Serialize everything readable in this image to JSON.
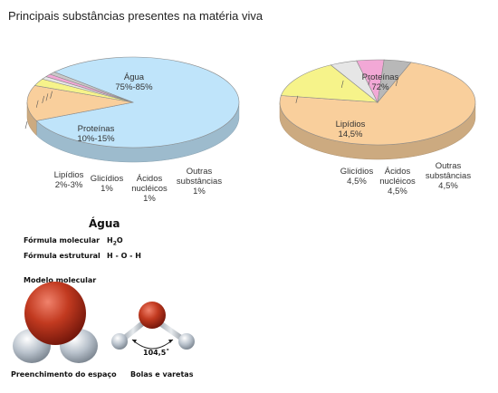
{
  "title": "Principais substâncias presentes na matéria viva",
  "chart_data": [
    {
      "type": "pie",
      "slices": [
        {
          "name": "Água",
          "value_label": "75%-85%",
          "value": 80,
          "color": "#bfe4fa"
        },
        {
          "name": "Proteínas",
          "value_label": "10%-15%",
          "value": 12.5,
          "color": "#f9cf9c"
        },
        {
          "name": "Lipídios",
          "value_label": "2%-3%",
          "value": 2.5,
          "color": "#f6f38a"
        },
        {
          "name": "Glicídios",
          "value_label": "1%",
          "value": 1,
          "color": "#e6e6e6"
        },
        {
          "name": "Ácidos nucléicos",
          "value_label": "1%",
          "value": 1,
          "color": "#f2a8d6"
        },
        {
          "name": "Outras substâncias",
          "value_label": "1%",
          "value": 1,
          "color": "#c9c9c9"
        }
      ]
    },
    {
      "type": "pie",
      "slices": [
        {
          "name": "Proteínas",
          "value_label": "72%",
          "value": 72,
          "color": "#f9cf9c"
        },
        {
          "name": "Lipídios",
          "value_label": "14,5%",
          "value": 14.5,
          "color": "#f6f38a"
        },
        {
          "name": "Glicídios",
          "value_label": "4,5%",
          "value": 4.5,
          "color": "#e6e6e6"
        },
        {
          "name": "Ácidos nucléicos",
          "value_label": "4,5%",
          "value": 4.5,
          "color": "#f2a8d6"
        },
        {
          "name": "Outras substâncias",
          "value_label": "4,5%",
          "value": 4.5,
          "color": "#b8b8b8"
        }
      ]
    }
  ],
  "labels": {
    "left": {
      "agua": [
        "Água",
        "75%-85%"
      ],
      "proteinas": [
        "Proteínas",
        "10%-15%"
      ],
      "lipidios": [
        "Lipídios",
        "2%-3%"
      ],
      "glicidios": [
        "Glicídios",
        "1%"
      ],
      "acidos": [
        "Ácidos",
        "nucléicos",
        "1%"
      ],
      "outras": [
        "Outras",
        "substâncias",
        "1%"
      ]
    },
    "right": {
      "proteinas": [
        "Proteínas",
        "72%"
      ],
      "lipidios": [
        "Lipídios",
        "14,5%"
      ],
      "glicidios": [
        "Glicídios",
        "4,5%"
      ],
      "acidos": [
        "Ácidos",
        "nucléicos",
        "4,5%"
      ],
      "outras": [
        "Outras",
        "substâncias",
        "4,5%"
      ]
    }
  },
  "water": {
    "title": "Água",
    "formula_molecular_label": "Fórmula molecular",
    "formula_molecular_h": "H",
    "formula_molecular_sub": "2",
    "formula_molecular_o": "O",
    "formula_estrutural_label": "Fórmula estrutural",
    "formula_estrutural": "H - O - H",
    "modelo_label": "Modelo molecular",
    "espaco_label": "Preenchimento do espaço",
    "bolas_label": "Bolas e varetas",
    "angle": "104,5˚"
  }
}
